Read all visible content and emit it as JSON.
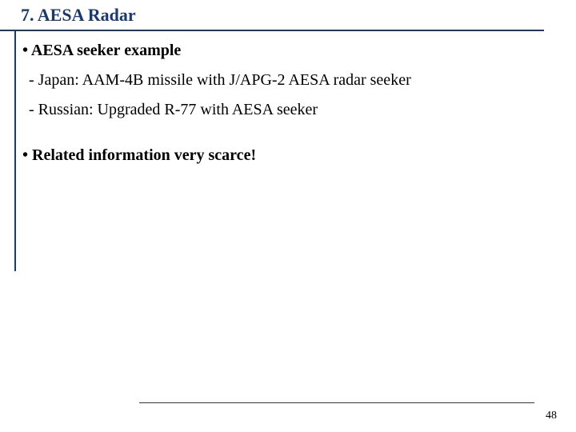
{
  "slide": {
    "title": "7. AESA Radar",
    "title_color": "#1b3a6b",
    "title_fontsize": 22,
    "rule_color": "#1b3a6b",
    "bullet1": "• AESA seeker example",
    "line1": "- Japan: AAM-4B missile with J/APG-2 AESA radar seeker",
    "line2": "- Russian: Upgraded R-77 with AESA seeker",
    "bullet2": "• Related information very scarce!",
    "body_fontsize": 20,
    "body_color": "#000000",
    "page_number": "48",
    "page_number_fontsize": 14,
    "bottom_rule_color": "#1b3a6b"
  }
}
